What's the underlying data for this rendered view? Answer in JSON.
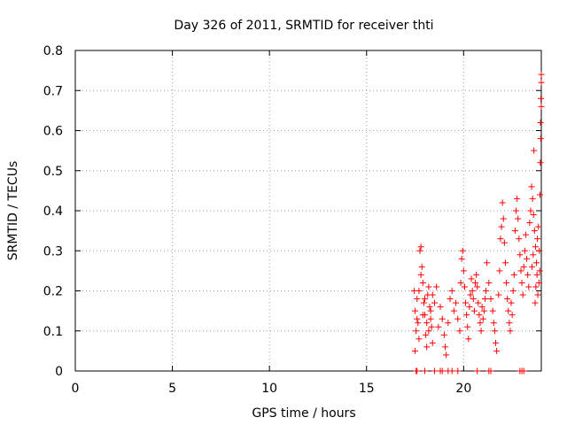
{
  "chart_data": {
    "type": "scatter",
    "title": "Day 326 of 2011, SRMTID for receiver thti",
    "xlabel": "GPS time / hours",
    "ylabel": "SRMTID / TECUs",
    "xlim": [
      0,
      24
    ],
    "ylim": [
      0,
      0.8
    ],
    "xticks": [
      0,
      5,
      10,
      15,
      20
    ],
    "xtick_labels": [
      "0",
      "5",
      "10",
      "15",
      "20"
    ],
    "yticks": [
      0,
      0.1,
      0.2,
      0.3,
      0.4,
      0.5,
      0.6,
      0.7,
      0.8
    ],
    "ytick_labels": [
      "0",
      "0.1",
      "0.2",
      "0.3",
      "0.4",
      "0.5",
      "0.6",
      "0.7",
      "0.8"
    ],
    "grid": true,
    "marker": "+",
    "color": "#ff0000",
    "series": [
      {
        "name": "SRMTID",
        "points": [
          [
            17.45,
            0.2
          ],
          [
            17.5,
            0.15
          ],
          [
            17.55,
            0.1
          ],
          [
            17.6,
            0.18
          ],
          [
            17.65,
            0.12
          ],
          [
            17.7,
            0.08
          ],
          [
            17.75,
            0.3
          ],
          [
            17.8,
            0.31
          ],
          [
            17.85,
            0.26
          ],
          [
            17.9,
            0.22
          ],
          [
            17.95,
            0.17
          ],
          [
            18.0,
            0.14
          ],
          [
            18.05,
            0.09
          ],
          [
            18.1,
            0.06
          ],
          [
            18.15,
            0.19
          ],
          [
            18.2,
            0.21
          ],
          [
            18.25,
            0.16
          ],
          [
            18.3,
            0.13
          ],
          [
            18.35,
            0.11
          ],
          [
            18.4,
            0.07
          ],
          [
            17.5,
            0.05
          ],
          [
            17.6,
            0.13
          ],
          [
            17.7,
            0.2
          ],
          [
            17.8,
            0.24
          ],
          [
            17.9,
            0.14
          ],
          [
            18.0,
            0.18
          ],
          [
            18.1,
            0.12
          ],
          [
            18.2,
            0.1
          ],
          [
            18.3,
            0.15
          ],
          [
            18.4,
            0.19
          ],
          [
            18.5,
            0.17
          ],
          [
            18.6,
            0.21
          ],
          [
            18.7,
            0.11
          ],
          [
            18.8,
            0.16
          ],
          [
            18.9,
            0.13
          ],
          [
            19.0,
            0.09
          ],
          [
            19.05,
            0.06
          ],
          [
            19.1,
            0.04
          ],
          [
            19.2,
            0.12
          ],
          [
            19.3,
            0.18
          ],
          [
            19.4,
            0.2
          ],
          [
            19.5,
            0.15
          ],
          [
            19.6,
            0.17
          ],
          [
            19.7,
            0.13
          ],
          [
            19.8,
            0.1
          ],
          [
            19.85,
            0.22
          ],
          [
            19.9,
            0.28
          ],
          [
            19.95,
            0.3
          ],
          [
            20.0,
            0.25
          ],
          [
            20.05,
            0.21
          ],
          [
            20.1,
            0.17
          ],
          [
            20.15,
            0.14
          ],
          [
            20.2,
            0.11
          ],
          [
            20.25,
            0.08
          ],
          [
            20.3,
            0.16
          ],
          [
            20.35,
            0.19
          ],
          [
            20.4,
            0.23
          ],
          [
            20.45,
            0.2
          ],
          [
            20.5,
            0.18
          ],
          [
            20.55,
            0.15
          ],
          [
            20.6,
            0.22
          ],
          [
            20.65,
            0.24
          ],
          [
            20.7,
            0.21
          ],
          [
            20.75,
            0.17
          ],
          [
            20.8,
            0.14
          ],
          [
            20.85,
            0.12
          ],
          [
            20.9,
            0.1
          ],
          [
            20.95,
            0.16
          ],
          [
            21.0,
            0.13
          ],
          [
            21.05,
            0.15
          ],
          [
            21.1,
            0.18
          ],
          [
            21.15,
            0.2
          ],
          [
            21.2,
            0.27
          ],
          [
            21.3,
            0.22
          ],
          [
            21.4,
            0.18
          ],
          [
            21.5,
            0.15
          ],
          [
            21.55,
            0.12
          ],
          [
            21.6,
            0.1
          ],
          [
            21.65,
            0.07
          ],
          [
            21.7,
            0.05
          ],
          [
            21.8,
            0.19
          ],
          [
            21.85,
            0.25
          ],
          [
            21.9,
            0.33
          ],
          [
            21.95,
            0.36
          ],
          [
            22.0,
            0.42
          ],
          [
            22.05,
            0.38
          ],
          [
            22.1,
            0.32
          ],
          [
            22.15,
            0.27
          ],
          [
            22.2,
            0.22
          ],
          [
            22.25,
            0.18
          ],
          [
            22.3,
            0.15
          ],
          [
            22.35,
            0.12
          ],
          [
            22.4,
            0.1
          ],
          [
            22.45,
            0.17
          ],
          [
            22.5,
            0.14
          ],
          [
            22.55,
            0.2
          ],
          [
            22.6,
            0.24
          ],
          [
            22.65,
            0.35
          ],
          [
            22.7,
            0.4
          ],
          [
            22.75,
            0.43
          ],
          [
            22.8,
            0.38
          ],
          [
            22.85,
            0.33
          ],
          [
            22.9,
            0.29
          ],
          [
            22.95,
            0.25
          ],
          [
            23.0,
            0.22
          ],
          [
            23.05,
            0.19
          ],
          [
            23.1,
            0.26
          ],
          [
            23.15,
            0.3
          ],
          [
            23.2,
            0.34
          ],
          [
            23.25,
            0.28
          ],
          [
            23.3,
            0.24
          ],
          [
            23.35,
            0.21
          ],
          [
            23.4,
            0.37
          ],
          [
            23.45,
            0.4
          ],
          [
            23.5,
            0.46
          ],
          [
            23.55,
            0.43
          ],
          [
            23.6,
            0.39
          ],
          [
            23.65,
            0.35
          ],
          [
            23.7,
            0.31
          ],
          [
            23.75,
            0.27
          ],
          [
            23.8,
            0.33
          ],
          [
            23.85,
            0.36
          ],
          [
            23.9,
            0.3
          ],
          [
            23.92,
            0.25
          ],
          [
            23.95,
            0.52
          ],
          [
            23.97,
            0.58
          ],
          [
            24.0,
            0.66
          ],
          [
            24.0,
            0.72
          ],
          [
            24.0,
            0.74
          ],
          [
            23.98,
            0.68
          ],
          [
            23.96,
            0.62
          ],
          [
            23.93,
            0.44
          ],
          [
            23.88,
            0.22
          ],
          [
            23.82,
            0.19
          ],
          [
            23.78,
            0.24
          ],
          [
            23.72,
            0.21
          ],
          [
            23.68,
            0.17
          ],
          [
            23.62,
            0.55
          ],
          [
            23.58,
            0.29
          ],
          [
            23.52,
            0.26
          ],
          [
            17.55,
            0.0
          ],
          [
            17.6,
            0.0
          ],
          [
            18.0,
            0.0
          ],
          [
            18.5,
            0.0
          ],
          [
            18.8,
            0.0
          ],
          [
            18.9,
            0.0
          ],
          [
            19.2,
            0.0
          ],
          [
            19.4,
            0.0
          ],
          [
            19.7,
            0.0
          ],
          [
            20.7,
            0.0
          ],
          [
            21.3,
            0.0
          ],
          [
            21.4,
            0.0
          ],
          [
            22.9,
            0.0
          ],
          [
            23.0,
            0.0
          ],
          [
            23.1,
            0.0
          ]
        ]
      }
    ]
  }
}
